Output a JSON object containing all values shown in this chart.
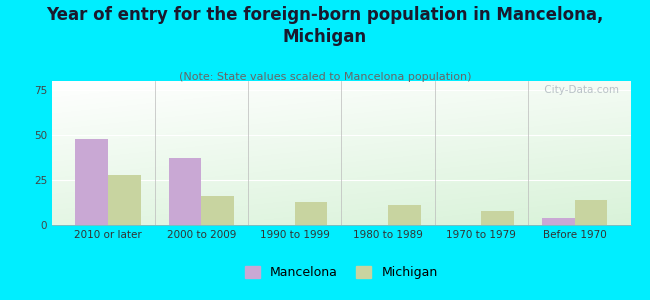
{
  "title": "Year of entry for the foreign-born population in Mancelona,\nMichigan",
  "subtitle": "(Note: State values scaled to Mancelona population)",
  "categories": [
    "2010 or later",
    "2000 to 2009",
    "1990 to 1999",
    "1980 to 1989",
    "1970 to 1979",
    "Before 1970"
  ],
  "mancelona_values": [
    48,
    37,
    0,
    0,
    0,
    4
  ],
  "michigan_values": [
    28,
    16,
    13,
    11,
    8,
    14
  ],
  "mancelona_color": "#c9a8d4",
  "michigan_color": "#c8d4a0",
  "background_color": "#00eeff",
  "ylim": [
    0,
    80
  ],
  "yticks": [
    0,
    25,
    50,
    75
  ],
  "bar_width": 0.35,
  "title_fontsize": 12,
  "subtitle_fontsize": 8,
  "legend_fontsize": 9,
  "tick_fontsize": 7.5,
  "watermark_text": " City-Data.com"
}
